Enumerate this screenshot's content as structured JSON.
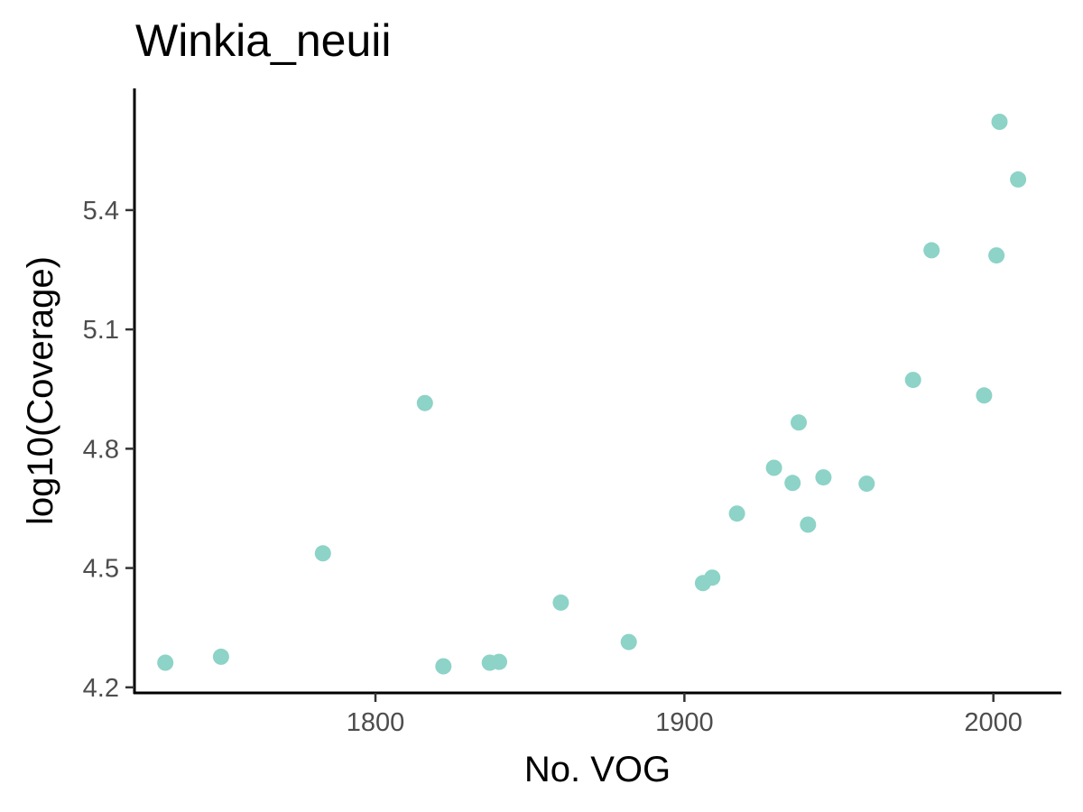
{
  "chart_data": {
    "type": "scatter",
    "title": "Winkia_neuii",
    "xlabel": "No. VOG",
    "ylabel": "log10(Coverage)",
    "xlim": [
      1722,
      2022
    ],
    "ylim": [
      4.186,
      5.706
    ],
    "x_ticks": [
      1800,
      1900,
      2000
    ],
    "y_ticks": [
      4.2,
      4.5,
      4.8,
      5.1,
      5.4
    ],
    "x_tick_labels": [
      "1800",
      "1900",
      "2000"
    ],
    "y_tick_labels": [
      "4.2",
      "4.5",
      "4.8",
      "5.1",
      "5.4"
    ],
    "grid": false,
    "legend": "none",
    "point_color": "#8DD3C7",
    "points": [
      {
        "x": 1732,
        "y": 4.262
      },
      {
        "x": 1750,
        "y": 4.277
      },
      {
        "x": 1783,
        "y": 4.537
      },
      {
        "x": 1816,
        "y": 4.915
      },
      {
        "x": 1822,
        "y": 4.253
      },
      {
        "x": 1837,
        "y": 4.262
      },
      {
        "x": 1840,
        "y": 4.264
      },
      {
        "x": 1860,
        "y": 4.413
      },
      {
        "x": 1882,
        "y": 4.314
      },
      {
        "x": 1906,
        "y": 4.462
      },
      {
        "x": 1909,
        "y": 4.476
      },
      {
        "x": 1917,
        "y": 4.637
      },
      {
        "x": 1929,
        "y": 4.752
      },
      {
        "x": 1935,
        "y": 4.714
      },
      {
        "x": 1937,
        "y": 4.866
      },
      {
        "x": 1940,
        "y": 4.609
      },
      {
        "x": 1945,
        "y": 4.728
      },
      {
        "x": 1959,
        "y": 4.712
      },
      {
        "x": 1974,
        "y": 4.973
      },
      {
        "x": 1980,
        "y": 5.299
      },
      {
        "x": 1997,
        "y": 4.934
      },
      {
        "x": 2001,
        "y": 5.286
      },
      {
        "x": 2002,
        "y": 5.622
      },
      {
        "x": 2008,
        "y": 5.477
      }
    ]
  }
}
